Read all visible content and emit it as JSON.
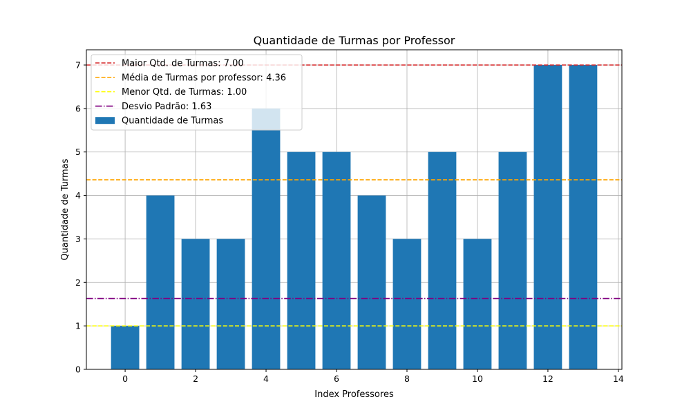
{
  "chart_data": {
    "type": "bar",
    "title": "Quantidade de Turmas por Professor",
    "xlabel": "Index Professores",
    "ylabel": "Quantidade de Turmas",
    "x": [
      0,
      1,
      2,
      3,
      4,
      5,
      6,
      7,
      8,
      9,
      10,
      11,
      12,
      13
    ],
    "series": [
      {
        "name": "Quantidade de Turmas",
        "color": "#1f77b4",
        "values": [
          1,
          4,
          3,
          3,
          6,
          5,
          5,
          4,
          3,
          5,
          3,
          5,
          7,
          7
        ]
      }
    ],
    "xlim": [
      -1.1,
      14.1
    ],
    "ylim": [
      0,
      7.35
    ],
    "xticks": [
      "0",
      "2",
      "4",
      "6",
      "8",
      "10",
      "12",
      "14"
    ],
    "yticks": [
      "0",
      "1",
      "2",
      "3",
      "4",
      "5",
      "6",
      "7"
    ],
    "grid": true,
    "legend_position": "top-left",
    "reference_lines": [
      {
        "label": "Maior Qtd. de Turmas: 7.00",
        "value": 7.0,
        "color": "#d62728",
        "style": "dashed"
      },
      {
        "label": "Média de Turmas por professor: 4.36",
        "value": 4.36,
        "color": "#ffa500",
        "style": "dashed"
      },
      {
        "label": "Menor Qtd. de Turmas: 1.00",
        "value": 1.0,
        "color": "#ffff00",
        "style": "dashed"
      },
      {
        "label": "Desvio Padrão: 1.63",
        "value": 1.63,
        "color": "#800080",
        "style": "dashdot"
      }
    ]
  }
}
